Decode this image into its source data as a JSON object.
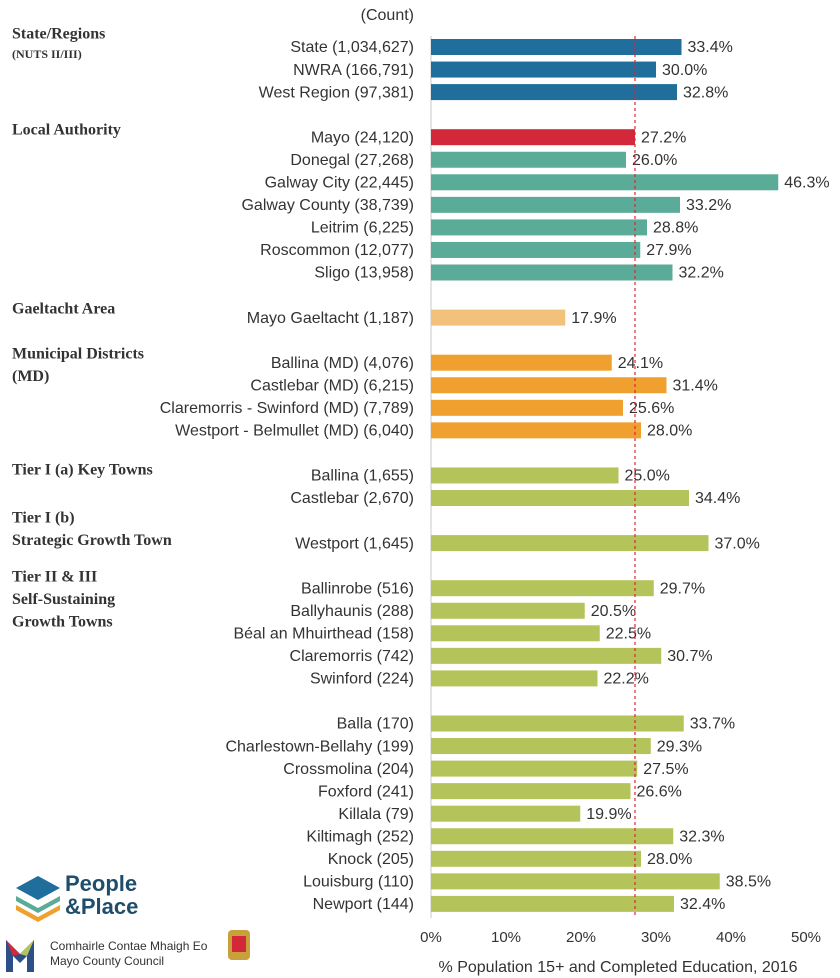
{
  "chart_data": {
    "type": "bar",
    "orientation": "horizontal",
    "count_header": "(Count)",
    "x_label": "% Population 15+ and Completed Education, 2016",
    "categories": [
      "State (1,034,627)",
      "NWRA (166,791)",
      "West Region (97,381)",
      null,
      "Mayo (24,120)",
      "Donegal (27,268)",
      "Galway City (22,445)",
      "Galway County (38,739)",
      "Leitrim (6,225)",
      "Roscommon (12,077)",
      "Sligo (13,958)",
      null,
      "Mayo Gaeltacht (1,187)",
      null,
      "Ballina (MD) (4,076)",
      "Castlebar (MD) (6,215)",
      "Claremorris - Swinford (MD) (7,789)",
      "Westport - Belmullet (MD) (6,040)",
      null,
      "Ballina (1,655)",
      "Castlebar (2,670)",
      null,
      "Westport (1,645)",
      null,
      "Ballinrobe (516)",
      "Ballyhaunis (288)",
      "Béal an Mhuirthead (158)",
      "Claremorris (742)",
      "Swinford (224)",
      null,
      "Balla (170)",
      "Charlestown-Bellahy (199)",
      "Crossmolina (204)",
      "Foxford (241)",
      "Killala (79)",
      "Kiltimagh (252)",
      "Knock (205)",
      "Louisburg (110)",
      "Newport (144)"
    ],
    "values": [
      33.4,
      30.0,
      32.8,
      null,
      27.2,
      26.0,
      46.3,
      33.2,
      28.8,
      27.9,
      32.2,
      null,
      17.9,
      null,
      24.1,
      31.4,
      25.6,
      28.0,
      null,
      25.0,
      34.4,
      null,
      37.0,
      null,
      29.7,
      20.5,
      22.5,
      30.7,
      22.2,
      null,
      33.7,
      29.3,
      27.5,
      26.6,
      19.9,
      32.3,
      28.0,
      38.5,
      32.4
    ],
    "value_labels": [
      "33.4%",
      "30.0%",
      "32.8%",
      null,
      "27.2%",
      "26.0%",
      "46.3%",
      "33.2%",
      "28.8%",
      "27.9%",
      "32.2%",
      null,
      "17.9%",
      null,
      "24.1%",
      "31.4%",
      "25.6%",
      "28.0%",
      null,
      "25.0%",
      "34.4%",
      null,
      "37.0%",
      null,
      "29.7%",
      "20.5%",
      "22.5%",
      "30.7%",
      "22.2%",
      null,
      "33.7%",
      "29.3%",
      "27.5%",
      "26.6%",
      "19.9%",
      "32.3%",
      "28.0%",
      "38.5%",
      "32.4%"
    ],
    "colors": [
      "#1f6e9c",
      "#1f6e9c",
      "#1f6e9c",
      null,
      "#d2283a",
      "#5bab99",
      "#5bab99",
      "#5bab99",
      "#5bab99",
      "#5bab99",
      "#5bab99",
      null,
      "#f2c27a",
      null,
      "#f0a02f",
      "#f0a02f",
      "#f0a02f",
      "#f0a02f",
      null,
      "#b5c45a",
      "#b5c45a",
      null,
      "#b5c45a",
      null,
      "#b5c45a",
      "#b5c45a",
      "#b5c45a",
      "#b5c45a",
      "#b5c45a",
      null,
      "#b5c45a",
      "#b5c45a",
      "#b5c45a",
      "#b5c45a",
      "#b5c45a",
      "#b5c45a",
      "#b5c45a",
      "#b5c45a",
      "#b5c45a"
    ],
    "groups": [
      {
        "lines": [
          "State/Regions",
          "(NUTS II/III)"
        ]
      },
      {
        "lines": [
          "Local Authority"
        ]
      },
      {
        "lines": [
          "Gaeltacht Area"
        ]
      },
      {
        "lines": [
          "Municipal Districts",
          "(MD)"
        ]
      },
      {
        "lines": [
          "Tier I (a) Key Towns"
        ]
      },
      {
        "lines": [
          "Tier I (b)",
          "Strategic Growth Town"
        ]
      },
      {
        "lines": [
          "Tier II & III",
          "Self-Sustaining",
          "Growth Towns"
        ]
      }
    ],
    "reference_line": {
      "value": 27.2,
      "color": "#d2283a"
    },
    "xlim": [
      0,
      50
    ],
    "xticks": [
      {
        "value": 0,
        "label": "0%"
      },
      {
        "value": 10,
        "label": "10%"
      },
      {
        "value": 20,
        "label": "20%"
      },
      {
        "value": 30,
        "label": "30%"
      },
      {
        "value": 40,
        "label": "40%"
      },
      {
        "value": 50,
        "label": "50%"
      }
    ],
    "axis_color": "#c8c8c8"
  },
  "logos": {
    "brand": [
      "People",
      "&Place"
    ],
    "council": [
      "Comhairle Contae Mhaigh Eo",
      "Mayo County Council"
    ]
  }
}
